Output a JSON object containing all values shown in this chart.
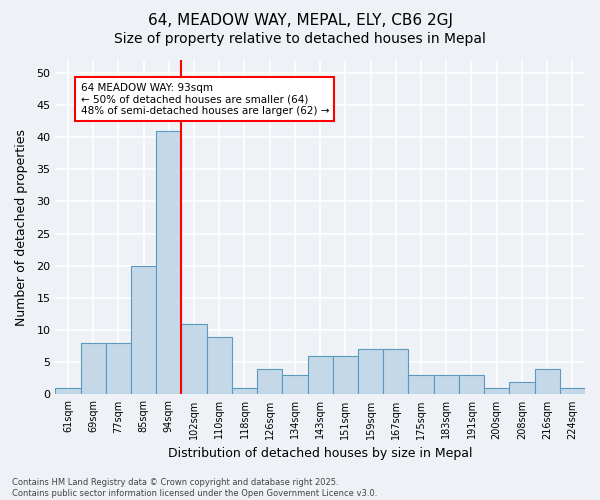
{
  "title1": "64, MEADOW WAY, MEPAL, ELY, CB6 2GJ",
  "title2": "Size of property relative to detached houses in Mepal",
  "xlabel": "Distribution of detached houses by size in Mepal",
  "ylabel": "Number of detached properties",
  "categories": [
    "61sqm",
    "69sqm",
    "77sqm",
    "85sqm",
    "94sqm",
    "102sqm",
    "110sqm",
    "118sqm",
    "126sqm",
    "134sqm",
    "143sqm",
    "151sqm",
    "159sqm",
    "167sqm",
    "175sqm",
    "183sqm",
    "191sqm",
    "200sqm",
    "208sqm",
    "216sqm",
    "224sqm"
  ],
  "values": [
    1,
    8,
    8,
    20,
    41,
    11,
    9,
    1,
    4,
    3,
    6,
    6,
    7,
    7,
    3,
    3,
    3,
    1,
    2,
    4,
    1
  ],
  "bar_color": "#c5d8e8",
  "bar_edge_color": "#5a9abf",
  "redline_x": 4.5,
  "annotation_line1": "64 MEADOW WAY: 93sqm",
  "annotation_line2": "← 50% of detached houses are smaller (64)",
  "annotation_line3": "48% of semi-detached houses are larger (62) →",
  "ylim": [
    0,
    52
  ],
  "yticks": [
    0,
    5,
    10,
    15,
    20,
    25,
    30,
    35,
    40,
    45,
    50
  ],
  "footer1": "Contains HM Land Registry data © Crown copyright and database right 2025.",
  "footer2": "Contains public sector information licensed under the Open Government Licence v3.0.",
  "bg_color": "#eef2f7",
  "grid_color": "white",
  "title_fontsize": 11,
  "subtitle_fontsize": 10
}
